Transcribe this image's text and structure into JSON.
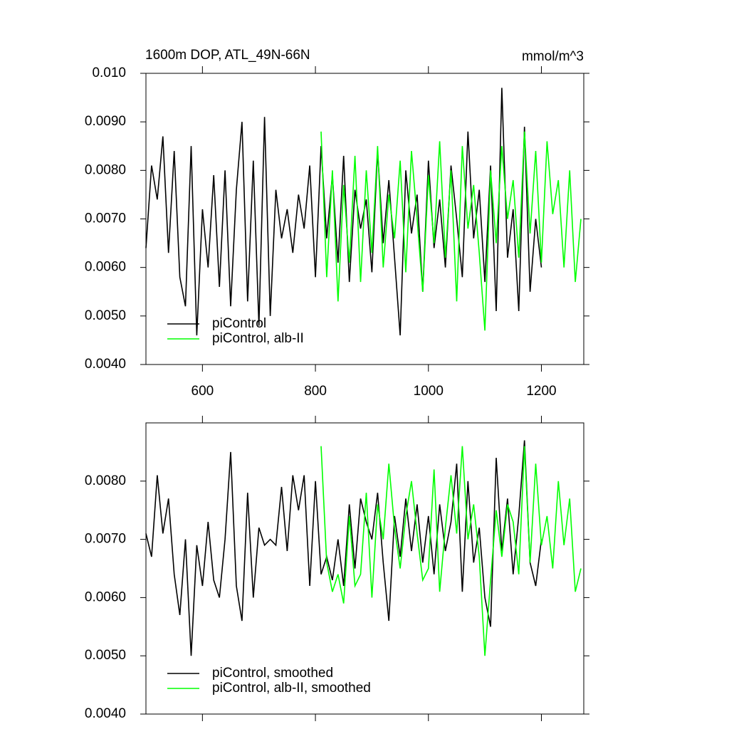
{
  "chart_data": [
    {
      "type": "line",
      "title": "1600m DOP, ATL_49N-66N",
      "subtitle": "mmol/m^3",
      "xlim": [
        500,
        1275
      ],
      "xticks": [
        600,
        800,
        1000,
        1200
      ],
      "ylim": [
        0.004,
        0.01
      ],
      "yticks": [
        {
          "value": 0.004,
          "label": "0.0040"
        },
        {
          "value": 0.005,
          "label": "0.0050"
        },
        {
          "value": 0.006,
          "label": "0.0060"
        },
        {
          "value": 0.007,
          "label": "0.0070"
        },
        {
          "value": 0.008,
          "label": "0.0080"
        },
        {
          "value": 0.009,
          "label": "0.0090"
        },
        {
          "value": 0.01,
          "label": "0.010"
        }
      ],
      "legend": "lower-left",
      "series": [
        {
          "name": "piControl",
          "color": "#000000",
          "x": [
            500,
            510,
            520,
            530,
            540,
            550,
            560,
            570,
            580,
            590,
            600,
            610,
            620,
            630,
            640,
            650,
            660,
            670,
            680,
            690,
            700,
            710,
            720,
            730,
            740,
            750,
            760,
            770,
            780,
            790,
            800,
            810,
            820,
            830,
            840,
            850,
            860,
            870,
            880,
            890,
            900,
            910,
            920,
            930,
            940,
            950,
            960,
            970,
            980,
            990,
            1000,
            1010,
            1020,
            1030,
            1040,
            1050,
            1060,
            1070,
            1080,
            1090,
            1100,
            1110,
            1120,
            1130,
            1140,
            1150,
            1160,
            1170,
            1180,
            1190,
            1200
          ],
          "values": [
            0.0064,
            0.0081,
            0.0074,
            0.0087,
            0.0063,
            0.0084,
            0.0058,
            0.0052,
            0.0085,
            0.0046,
            0.0072,
            0.006,
            0.0079,
            0.0056,
            0.008,
            0.0052,
            0.0076,
            0.009,
            0.0053,
            0.0082,
            0.0048,
            0.0091,
            0.005,
            0.0076,
            0.0066,
            0.0072,
            0.0063,
            0.0075,
            0.0068,
            0.0081,
            0.0058,
            0.0085,
            0.0066,
            0.0079,
            0.0061,
            0.0083,
            0.0057,
            0.0076,
            0.0068,
            0.0074,
            0.0059,
            0.0084,
            0.0065,
            0.0078,
            0.0062,
            0.0046,
            0.008,
            0.0067,
            0.0075,
            0.0055,
            0.0082,
            0.0064,
            0.0074,
            0.006,
            0.0081,
            0.007,
            0.0058,
            0.0088,
            0.0066,
            0.0076,
            0.0057,
            0.0081,
            0.0051,
            0.0097,
            0.0062,
            0.0072,
            0.0051,
            0.0089,
            0.0055,
            0.007,
            0.006
          ]
        },
        {
          "name": "piControl, alb-II",
          "color": "#00ff00",
          "x": [
            810,
            820,
            830,
            840,
            850,
            860,
            870,
            880,
            890,
            900,
            910,
            920,
            930,
            940,
            950,
            960,
            970,
            980,
            990,
            1000,
            1010,
            1020,
            1030,
            1040,
            1050,
            1060,
            1070,
            1080,
            1090,
            1100,
            1110,
            1120,
            1130,
            1140,
            1150,
            1160,
            1170,
            1180,
            1190,
            1200,
            1210,
            1220,
            1230,
            1240,
            1250,
            1260,
            1270
          ],
          "values": [
            0.0088,
            0.0058,
            0.008,
            0.0053,
            0.0077,
            0.0061,
            0.0083,
            0.0057,
            0.008,
            0.0063,
            0.0085,
            0.006,
            0.0075,
            0.0066,
            0.0082,
            0.0059,
            0.0084,
            0.007,
            0.0055,
            0.0079,
            0.0065,
            0.0086,
            0.0062,
            0.008,
            0.0053,
            0.0085,
            0.0068,
            0.0077,
            0.0063,
            0.0047,
            0.008,
            0.0065,
            0.0085,
            0.007,
            0.0078,
            0.0062,
            0.0088,
            0.0067,
            0.0084,
            0.0061,
            0.0086,
            0.0071,
            0.0078,
            0.006,
            0.008,
            0.0057,
            0.007
          ]
        }
      ]
    },
    {
      "type": "line",
      "xlim": [
        500,
        1275
      ],
      "xticks": [
        600,
        800,
        1000,
        1200
      ],
      "ylim": [
        0.004,
        0.009
      ],
      "yticks": [
        {
          "value": 0.004,
          "label": "0.0040"
        },
        {
          "value": 0.005,
          "label": "0.0050"
        },
        {
          "value": 0.006,
          "label": "0.0060"
        },
        {
          "value": 0.007,
          "label": "0.0070"
        },
        {
          "value": 0.008,
          "label": "0.0080"
        }
      ],
      "legend": "lower-left",
      "series": [
        {
          "name": "piControl, smoothed",
          "color": "#000000",
          "x": [
            500,
            510,
            520,
            530,
            540,
            550,
            560,
            570,
            580,
            590,
            600,
            610,
            620,
            630,
            640,
            650,
            660,
            670,
            680,
            690,
            700,
            710,
            720,
            730,
            740,
            750,
            760,
            770,
            780,
            790,
            800,
            810,
            820,
            830,
            840,
            850,
            860,
            870,
            880,
            890,
            900,
            910,
            920,
            930,
            940,
            950,
            960,
            970,
            980,
            990,
            1000,
            1010,
            1020,
            1030,
            1040,
            1050,
            1060,
            1070,
            1080,
            1090,
            1100,
            1110,
            1120,
            1130,
            1140,
            1150,
            1160,
            1170,
            1180,
            1190,
            1200
          ],
          "values": [
            0.0071,
            0.0067,
            0.0081,
            0.0071,
            0.0077,
            0.0064,
            0.0057,
            0.007,
            0.005,
            0.0069,
            0.0062,
            0.0073,
            0.0063,
            0.006,
            0.007,
            0.0085,
            0.0062,
            0.0056,
            0.0078,
            0.006,
            0.0072,
            0.0069,
            0.007,
            0.0069,
            0.0079,
            0.0068,
            0.0081,
            0.0075,
            0.0081,
            0.0062,
            0.008,
            0.0064,
            0.0067,
            0.0063,
            0.007,
            0.0062,
            0.0076,
            0.0065,
            0.0077,
            0.0073,
            0.007,
            0.0078,
            0.0066,
            0.0056,
            0.0074,
            0.0067,
            0.0077,
            0.0068,
            0.0076,
            0.0066,
            0.0074,
            0.0064,
            0.0076,
            0.0068,
            0.0073,
            0.0083,
            0.0061,
            0.008,
            0.0066,
            0.0072,
            0.006,
            0.0055,
            0.0084,
            0.0068,
            0.0077,
            0.0064,
            0.0074,
            0.0087,
            0.0066,
            0.0062,
            0.007
          ]
        },
        {
          "name": "piControl, alb-II, smoothed",
          "color": "#00ff00",
          "x": [
            810,
            820,
            830,
            840,
            850,
            860,
            870,
            880,
            890,
            900,
            910,
            920,
            930,
            940,
            950,
            960,
            970,
            980,
            990,
            1000,
            1010,
            1020,
            1030,
            1040,
            1050,
            1060,
            1070,
            1080,
            1090,
            1100,
            1110,
            1120,
            1130,
            1140,
            1150,
            1160,
            1170,
            1180,
            1190,
            1200,
            1210,
            1220,
            1230,
            1240,
            1250,
            1260,
            1270
          ],
          "values": [
            0.0086,
            0.0066,
            0.0061,
            0.0064,
            0.0059,
            0.0074,
            0.0062,
            0.0064,
            0.0078,
            0.006,
            0.0076,
            0.007,
            0.0083,
            0.0072,
            0.0065,
            0.0074,
            0.008,
            0.0071,
            0.0063,
            0.0065,
            0.0082,
            0.0061,
            0.0072,
            0.0081,
            0.0071,
            0.0086,
            0.007,
            0.0076,
            0.0067,
            0.005,
            0.0063,
            0.0075,
            0.0067,
            0.0076,
            0.0073,
            0.0064,
            0.0086,
            0.0066,
            0.0083,
            0.0069,
            0.0074,
            0.0065,
            0.008,
            0.0069,
            0.0077,
            0.0061,
            0.0065
          ]
        }
      ]
    }
  ]
}
